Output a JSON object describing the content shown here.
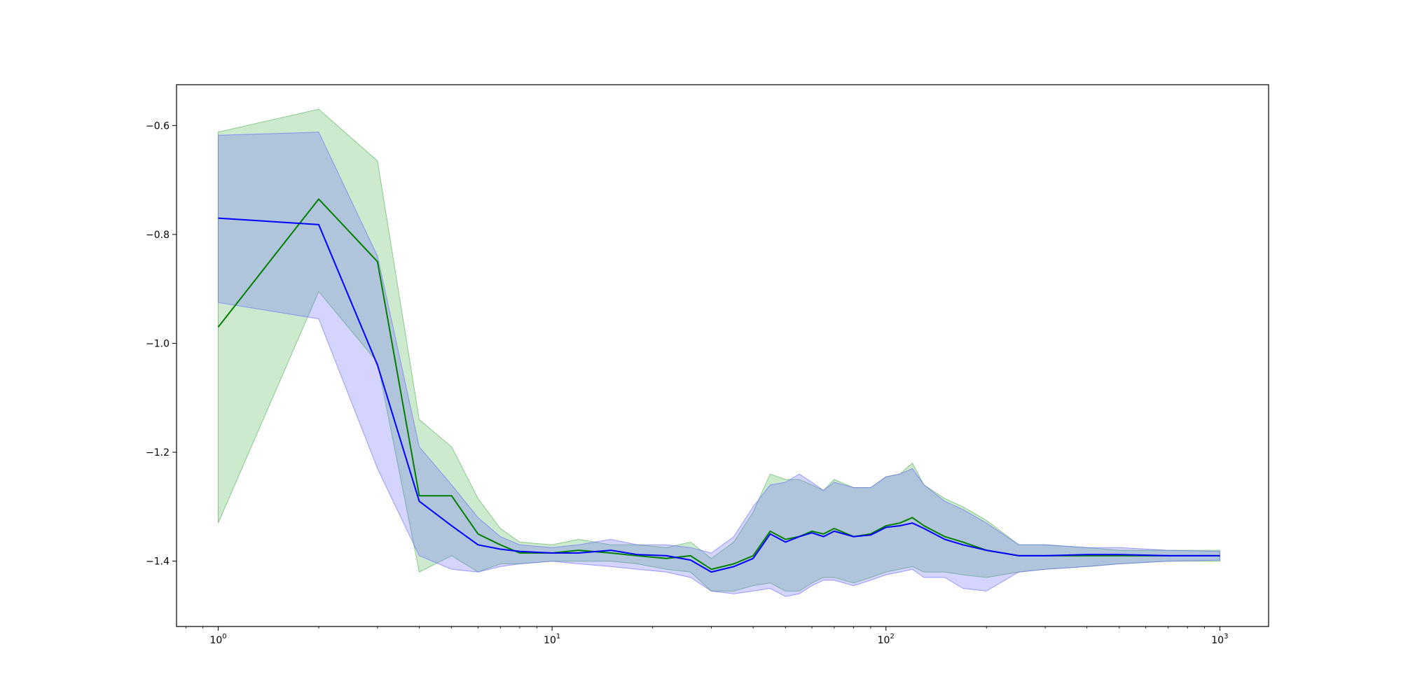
{
  "chart_data": {
    "type": "line",
    "xscale": "log",
    "xlim": [
      0.75,
      1400
    ],
    "ylim": [
      -1.52,
      -0.525
    ],
    "grid": false,
    "legend": "none",
    "title": "",
    "xlabel": "",
    "ylabel": "",
    "yticks": [
      {
        "value": -0.6,
        "label": "−0.6"
      },
      {
        "value": -0.8,
        "label": "−0.8"
      },
      {
        "value": -1.0,
        "label": "−1.0"
      },
      {
        "value": -1.2,
        "label": "−1.2"
      },
      {
        "value": -1.4,
        "label": "−1.4"
      }
    ],
    "xticks": [
      {
        "value": 1,
        "base": "10",
        "exp": "0"
      },
      {
        "value": 10,
        "base": "10",
        "exp": "1"
      },
      {
        "value": 100,
        "base": "10",
        "exp": "2"
      },
      {
        "value": 1000,
        "base": "10",
        "exp": "3"
      }
    ],
    "series": [
      {
        "color": "#008000",
        "band_color": "#4caf50",
        "x": [
          1,
          2,
          3,
          4,
          5,
          6,
          7,
          8,
          10,
          12,
          15,
          18,
          22,
          26,
          30,
          35,
          40,
          45,
          50,
          55,
          60,
          65,
          70,
          80,
          90,
          100,
          110,
          120,
          130,
          150,
          170,
          200,
          250,
          300,
          400,
          500,
          700,
          1000
        ],
        "y": [
          -0.97,
          -0.735,
          -0.85,
          -1.28,
          -1.28,
          -1.35,
          -1.37,
          -1.385,
          -1.385,
          -1.38,
          -1.385,
          -1.39,
          -1.395,
          -1.39,
          -1.415,
          -1.405,
          -1.39,
          -1.345,
          -1.36,
          -1.355,
          -1.345,
          -1.35,
          -1.34,
          -1.355,
          -1.35,
          -1.335,
          -1.33,
          -1.32,
          -1.335,
          -1.355,
          -1.365,
          -1.38,
          -1.39,
          -1.39,
          -1.39,
          -1.39,
          -1.39,
          -1.39
        ],
        "upper": [
          -0.612,
          -0.57,
          -0.665,
          -1.14,
          -1.19,
          -1.285,
          -1.34,
          -1.365,
          -1.37,
          -1.36,
          -1.37,
          -1.37,
          -1.375,
          -1.365,
          -1.395,
          -1.365,
          -1.31,
          -1.24,
          -1.25,
          -1.25,
          -1.26,
          -1.27,
          -1.25,
          -1.265,
          -1.265,
          -1.245,
          -1.24,
          -1.22,
          -1.26,
          -1.285,
          -1.3,
          -1.325,
          -1.37,
          -1.37,
          -1.375,
          -1.38,
          -1.38,
          -1.38
        ],
        "lower": [
          -1.33,
          -0.905,
          -1.035,
          -1.42,
          -1.39,
          -1.42,
          -1.405,
          -1.405,
          -1.4,
          -1.4,
          -1.4,
          -1.405,
          -1.415,
          -1.42,
          -1.455,
          -1.455,
          -1.445,
          -1.44,
          -1.455,
          -1.455,
          -1.44,
          -1.43,
          -1.43,
          -1.44,
          -1.43,
          -1.42,
          -1.415,
          -1.41,
          -1.42,
          -1.42,
          -1.425,
          -1.43,
          -1.42,
          -1.415,
          -1.41,
          -1.405,
          -1.4,
          -1.4
        ]
      },
      {
        "color": "#0000ff",
        "band_color": "#6666ff",
        "x": [
          1,
          2,
          3,
          4,
          5,
          6,
          7,
          8,
          10,
          12,
          15,
          18,
          22,
          26,
          30,
          35,
          40,
          45,
          50,
          55,
          60,
          65,
          70,
          80,
          90,
          100,
          110,
          120,
          130,
          150,
          170,
          200,
          250,
          300,
          400,
          500,
          700,
          1000
        ],
        "y": [
          -0.77,
          -0.782,
          -1.04,
          -1.29,
          -1.335,
          -1.37,
          -1.378,
          -1.382,
          -1.385,
          -1.385,
          -1.38,
          -1.388,
          -1.39,
          -1.398,
          -1.42,
          -1.41,
          -1.395,
          -1.35,
          -1.365,
          -1.355,
          -1.348,
          -1.355,
          -1.345,
          -1.355,
          -1.352,
          -1.338,
          -1.335,
          -1.33,
          -1.34,
          -1.36,
          -1.37,
          -1.38,
          -1.39,
          -1.39,
          -1.388,
          -1.388,
          -1.39,
          -1.39
        ],
        "upper": [
          -0.618,
          -0.612,
          -0.84,
          -1.19,
          -1.26,
          -1.32,
          -1.355,
          -1.37,
          -1.375,
          -1.37,
          -1.36,
          -1.37,
          -1.37,
          -1.375,
          -1.385,
          -1.355,
          -1.3,
          -1.26,
          -1.255,
          -1.24,
          -1.255,
          -1.27,
          -1.255,
          -1.265,
          -1.265,
          -1.245,
          -1.24,
          -1.23,
          -1.26,
          -1.29,
          -1.305,
          -1.33,
          -1.37,
          -1.37,
          -1.375,
          -1.375,
          -1.38,
          -1.382
        ],
        "lower": [
          -0.925,
          -0.955,
          -1.23,
          -1.39,
          -1.415,
          -1.42,
          -1.41,
          -1.405,
          -1.4,
          -1.405,
          -1.41,
          -1.415,
          -1.42,
          -1.43,
          -1.455,
          -1.46,
          -1.455,
          -1.45,
          -1.465,
          -1.46,
          -1.445,
          -1.435,
          -1.435,
          -1.445,
          -1.435,
          -1.425,
          -1.42,
          -1.415,
          -1.43,
          -1.43,
          -1.45,
          -1.455,
          -1.42,
          -1.415,
          -1.41,
          -1.405,
          -1.4,
          -1.398
        ]
      }
    ]
  }
}
